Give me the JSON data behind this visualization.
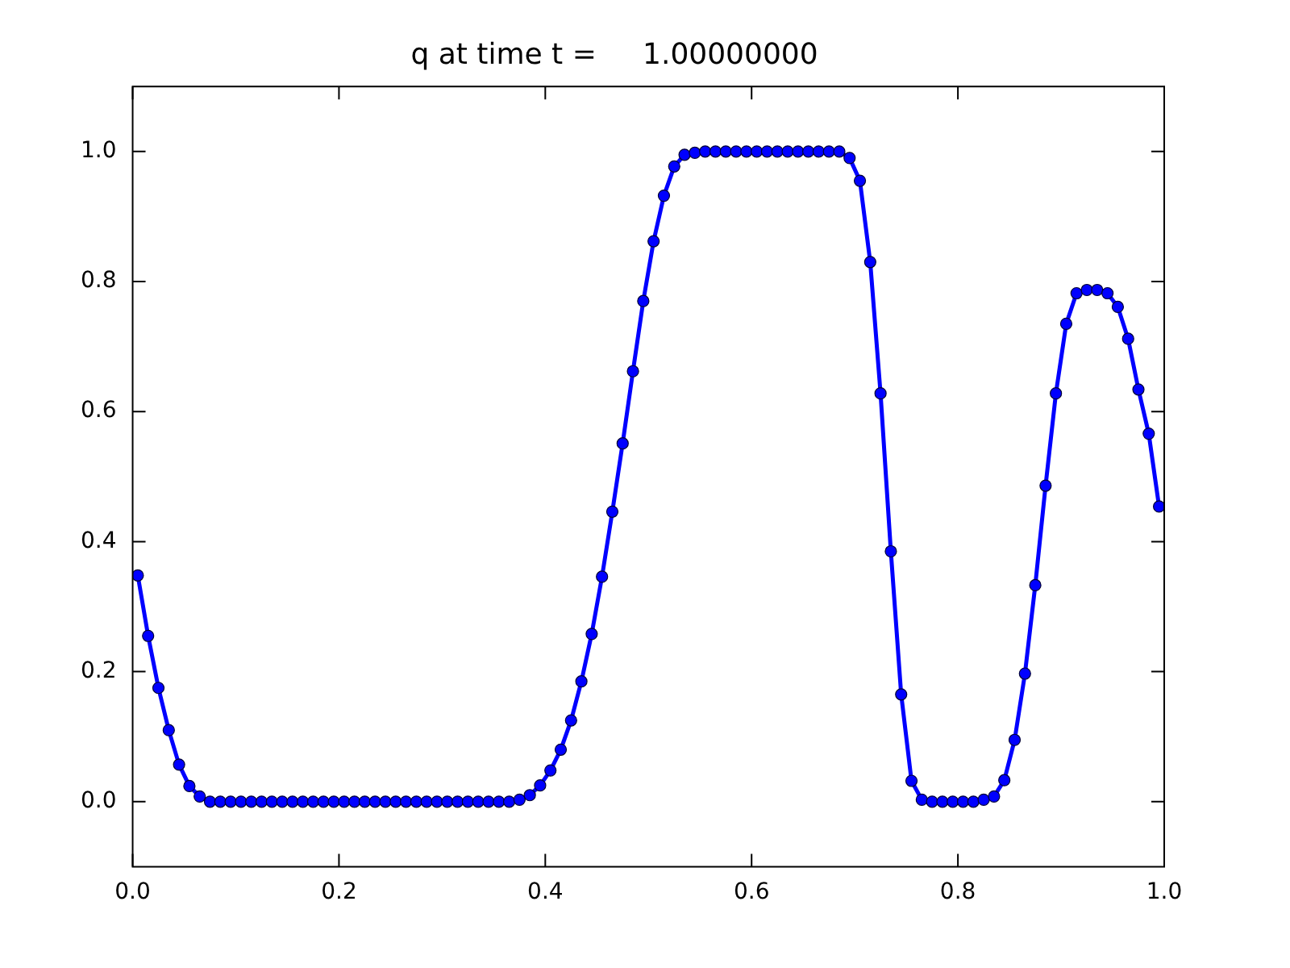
{
  "chart_data": {
    "type": "line",
    "title": "q at time t =     1.00000000",
    "x": [
      0.005,
      0.015,
      0.025,
      0.035,
      0.045,
      0.055,
      0.065,
      0.075,
      0.085,
      0.095,
      0.105,
      0.115,
      0.125,
      0.135,
      0.145,
      0.155,
      0.165,
      0.175,
      0.185,
      0.195,
      0.205,
      0.215,
      0.225,
      0.235,
      0.245,
      0.255,
      0.265,
      0.275,
      0.285,
      0.295,
      0.305,
      0.315,
      0.325,
      0.335,
      0.345,
      0.355,
      0.365,
      0.375,
      0.385,
      0.395,
      0.405,
      0.415,
      0.425,
      0.435,
      0.445,
      0.455,
      0.465,
      0.475,
      0.485,
      0.495,
      0.505,
      0.515,
      0.525,
      0.535,
      0.545,
      0.555,
      0.565,
      0.575,
      0.585,
      0.595,
      0.605,
      0.615,
      0.625,
      0.635,
      0.645,
      0.655,
      0.665,
      0.675,
      0.685,
      0.695,
      0.705,
      0.715,
      0.725,
      0.735,
      0.745,
      0.755,
      0.765,
      0.775,
      0.785,
      0.795,
      0.805,
      0.815,
      0.825,
      0.835,
      0.845,
      0.855,
      0.865,
      0.875,
      0.885,
      0.895,
      0.905,
      0.915,
      0.925,
      0.935,
      0.945,
      0.955,
      0.965,
      0.975,
      0.985,
      0.995
    ],
    "series": [
      {
        "color": "#0000ff",
        "values": [
          0.348,
          0.255,
          0.175,
          0.11,
          0.057,
          0.024,
          0.008,
          0,
          0,
          0,
          0,
          0,
          0,
          0,
          0,
          0,
          0,
          0,
          0,
          0,
          0,
          0,
          0,
          0,
          0,
          0,
          0,
          0,
          0,
          0,
          0,
          0,
          0,
          0,
          0,
          0,
          0,
          0.003,
          0.01,
          0.025,
          0.048,
          0.08,
          0.125,
          0.185,
          0.258,
          0.346,
          0.446,
          0.551,
          0.662,
          0.77,
          0.862,
          0.932,
          0.977,
          0.995,
          0.998,
          1,
          1,
          1,
          1,
          1,
          1,
          1,
          1,
          1,
          1,
          1,
          1,
          1,
          1,
          0.99,
          0.955,
          0.83,
          0.628,
          0.385,
          0.165,
          0.032,
          0.003,
          0,
          0,
          0,
          0,
          0,
          0.003,
          0.008,
          0.033,
          0.095,
          0.197,
          0.333,
          0.486,
          0.628,
          0.735,
          0.782,
          0.787,
          0.787,
          0.782,
          0.761,
          0.712,
          0.634,
          0.566,
          0.454
        ]
      }
    ],
    "xlim": [
      0,
      1
    ],
    "xticks": [
      {
        "value": 0,
        "label": "0.0"
      },
      {
        "value": 0.2,
        "label": "0.2"
      },
      {
        "value": 0.4,
        "label": "0.4"
      },
      {
        "value": 0.6,
        "label": "0.6"
      },
      {
        "value": 0.8,
        "label": "0.8"
      },
      {
        "value": 1,
        "label": "1.0"
      }
    ],
    "ylim": [
      -0.1,
      1.1
    ],
    "yticks": [
      {
        "value": 0,
        "label": "0.0"
      },
      {
        "value": 0.2,
        "label": "0.2"
      },
      {
        "value": 0.4,
        "label": "0.4"
      },
      {
        "value": 0.6,
        "label": "0.6"
      },
      {
        "value": 0.8,
        "label": "0.8"
      },
      {
        "value": 1,
        "label": "1.0"
      }
    ],
    "marker": "circle",
    "line_style": "solid"
  }
}
